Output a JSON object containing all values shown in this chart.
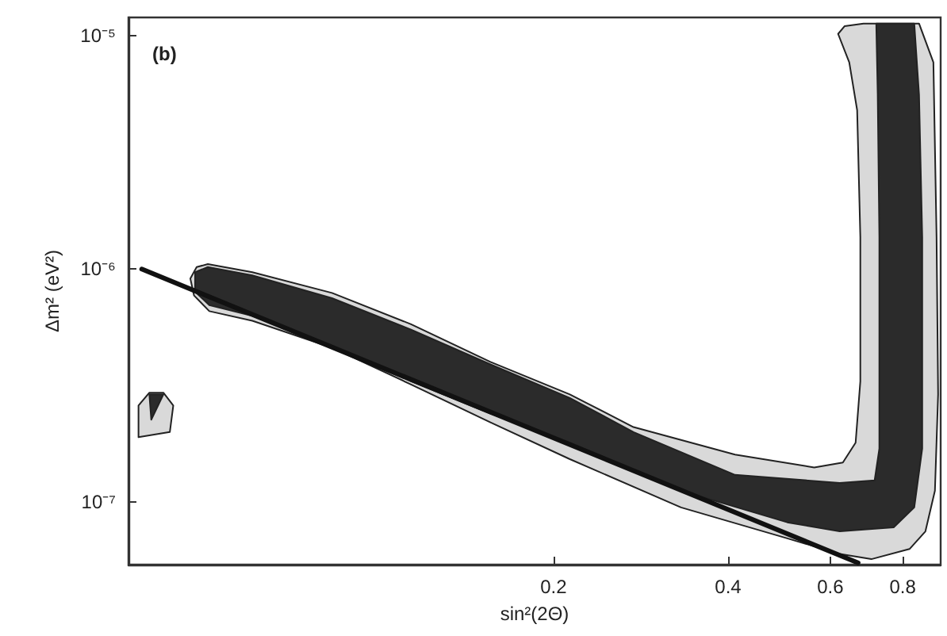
{
  "chart_data": {
    "type": "area",
    "xlabel": "sin²(2Θ)",
    "ylabel": "Δm² (eV²)",
    "annotations": [
      "(b)"
    ],
    "log": "xy",
    "grid": false,
    "marker": "none",
    "line_style": "solid",
    "xlim": [
      0.037,
      0.93
    ],
    "ylim": [
      5.4e-08,
      1.2e-05
    ],
    "xticks": [
      0.2,
      0.4,
      0.6,
      0.8
    ],
    "yticks": [
      {
        "value": 1e-07,
        "label": "10⁻⁷"
      },
      {
        "value": 1e-06,
        "label": "10⁻⁶"
      },
      {
        "value": 1e-05,
        "label": "10⁻⁵"
      }
    ],
    "series": [
      {
        "color": "#d9d9d9",
        "x": [
          0.0473,
          0.0485,
          0.0507,
          0.0605,
          0.083,
          0.1136,
          0.1557,
          0.2134,
          0.2747,
          0.4111,
          0.563,
          0.6308,
          0.6635,
          0.6761,
          0.6761,
          0.6676,
          0.647,
          0.619,
          0.6349,
          0.6847,
          0.8535,
          0.9036,
          0.915,
          0.9207,
          0.9091,
          0.8754,
          0.8219,
          0.7063,
          0.6229,
          0.5059,
          0.3318,
          0.2134,
          0.1557,
          0.1136,
          0.083,
          0.0605,
          0.051,
          0.048,
          0.0473,
          null,
          0.0385,
          0.0402,
          0.0425,
          0.0442,
          0.0436,
          0.0385,
          0.0385
        ],
        "values": [
          9.1e-07,
          1.02e-06,
          1.05e-06,
          9.7e-07,
          7.9e-07,
          5.8e-07,
          4e-07,
          2.9e-07,
          2.1e-07,
          1.6e-07,
          1.41e-07,
          1.48e-07,
          1.8e-07,
          3.3e-07,
          1.37e-06,
          4.8e-06,
          7.7e-06,
          1.02e-05,
          1.1e-05,
          1.13e-05,
          1.13e-05,
          7.7e-06,
          1.37e-06,
          2.9e-07,
          1.12e-07,
          7.5e-08,
          6.3e-08,
          5.7e-08,
          6e-08,
          7e-08,
          9.5e-08,
          1.53e-07,
          2.2e-07,
          3.2e-07,
          4.6e-07,
          6e-07,
          6.6e-07,
          7.7e-07,
          9.1e-07,
          null,
          2.6e-07,
          2.95e-07,
          2.95e-07,
          2.6e-07,
          2e-07,
          1.9e-07,
          2.6e-07
        ]
      },
      {
        "color": "#2b2b2b",
        "x": [
          0.0482,
          0.0507,
          0.0605,
          0.083,
          0.1136,
          0.1557,
          0.2134,
          0.2747,
          0.4111,
          0.6229,
          0.7155,
          0.7291,
          0.7291,
          0.7244,
          0.7202,
          0.8375,
          0.8535,
          0.8644,
          0.8644,
          0.8375,
          0.7718,
          0.6229,
          0.5059,
          0.3318,
          0.2134,
          0.1557,
          0.1136,
          0.083,
          0.0605,
          0.051,
          0.0482,
          0.0482,
          null,
          0.0402,
          0.0425,
          0.0405,
          0.0402
        ],
        "values": [
          9.7e-07,
          1.02e-06,
          9.4e-07,
          7.5e-07,
          5.5e-07,
          3.9e-07,
          2.8e-07,
          2e-07,
          1.31e-07,
          1.21e-07,
          1.24e-07,
          1.7e-07,
          1.37e-06,
          5.6e-06,
          1.13e-05,
          1.13e-05,
          5.6e-06,
          1.37e-06,
          1.7e-07,
          9.5e-08,
          7.8e-08,
          7.5e-08,
          8.2e-08,
          1.12e-07,
          1.8e-07,
          2.4e-07,
          3.3e-07,
          4.7e-07,
          6.3e-07,
          7e-07,
          8e-07,
          9.7e-07,
          null,
          2.9e-07,
          2.9e-07,
          2.26e-07,
          2.9e-07
        ]
      },
      {
        "type": "line",
        "color": "#111111",
        "x": [
          0.039,
          0.67
        ],
        "values": [
          1e-06,
          5.5e-08
        ]
      }
    ]
  }
}
